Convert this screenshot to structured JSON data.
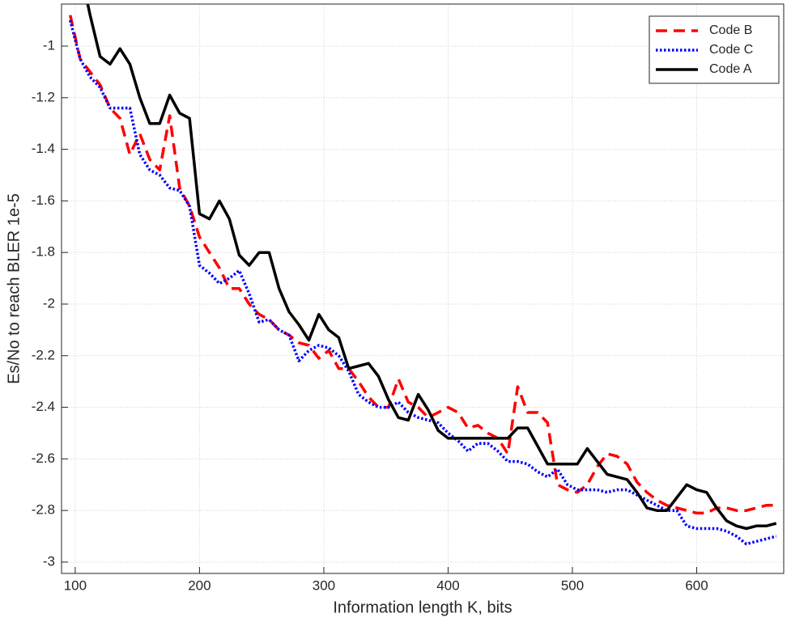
{
  "chart_data": {
    "type": "line",
    "xlabel": "Information length K, bits",
    "ylabel": "Es/No to reach BLER 1e-5",
    "x": [
      96,
      104,
      112,
      120,
      128,
      136,
      144,
      152,
      160,
      168,
      176,
      184,
      192,
      200,
      208,
      216,
      224,
      232,
      240,
      248,
      256,
      264,
      272,
      280,
      288,
      296,
      304,
      312,
      320,
      328,
      336,
      344,
      352,
      360,
      368,
      376,
      384,
      392,
      400,
      408,
      416,
      424,
      432,
      440,
      448,
      456,
      464,
      472,
      480,
      488,
      496,
      504,
      512,
      520,
      528,
      536,
      544,
      552,
      560,
      568,
      576,
      584,
      592,
      600,
      608,
      616,
      624,
      632,
      640,
      648,
      656,
      664
    ],
    "series": [
      {
        "name": "Code B",
        "color": "#ff0000",
        "style": "dashed",
        "values": [
          -0.88,
          -1.05,
          -1.1,
          -1.15,
          -1.24,
          -1.28,
          -1.42,
          -1.34,
          -1.44,
          -1.48,
          -1.27,
          -1.55,
          -1.62,
          -1.74,
          -1.8,
          -1.86,
          -1.94,
          -1.94,
          -2.0,
          -2.04,
          -2.06,
          -2.1,
          -2.12,
          -2.15,
          -2.16,
          -2.21,
          -2.18,
          -2.25,
          -2.25,
          -2.3,
          -2.36,
          -2.4,
          -2.4,
          -2.29,
          -2.38,
          -2.4,
          -2.44,
          -2.42,
          -2.4,
          -2.42,
          -2.48,
          -2.47,
          -2.5,
          -2.52,
          -2.58,
          -2.32,
          -2.42,
          -2.42,
          -2.46,
          -2.7,
          -2.72,
          -2.73,
          -2.7,
          -2.63,
          -2.58,
          -2.59,
          -2.62,
          -2.69,
          -2.73,
          -2.76,
          -2.78,
          -2.79,
          -2.8,
          -2.81,
          -2.81,
          -2.79,
          -2.79,
          -2.8,
          -2.8,
          -2.79,
          -2.78,
          -2.78
        ]
      },
      {
        "name": "Code C",
        "color": "#0000ff",
        "style": "dotted",
        "values": [
          -0.9,
          -1.05,
          -1.12,
          -1.16,
          -1.24,
          -1.24,
          -1.24,
          -1.42,
          -1.48,
          -1.5,
          -1.55,
          -1.56,
          -1.62,
          -1.85,
          -1.88,
          -1.92,
          -1.9,
          -1.87,
          -1.96,
          -2.07,
          -2.06,
          -2.1,
          -2.12,
          -2.22,
          -2.18,
          -2.16,
          -2.17,
          -2.2,
          -2.26,
          -2.35,
          -2.38,
          -2.4,
          -2.4,
          -2.38,
          -2.42,
          -2.44,
          -2.45,
          -2.46,
          -2.5,
          -2.53,
          -2.57,
          -2.54,
          -2.54,
          -2.57,
          -2.61,
          -2.61,
          -2.62,
          -2.65,
          -2.67,
          -2.64,
          -2.7,
          -2.72,
          -2.72,
          -2.72,
          -2.73,
          -2.72,
          -2.72,
          -2.74,
          -2.76,
          -2.78,
          -2.8,
          -2.8,
          -2.86,
          -2.87,
          -2.87,
          -2.87,
          -2.88,
          -2.9,
          -2.93,
          -2.92,
          -2.91,
          -2.9
        ]
      },
      {
        "name": "Code A",
        "color": "#000000",
        "style": "solid",
        "values": [
          null,
          -0.7,
          -0.88,
          -1.04,
          -1.07,
          -1.01,
          -1.07,
          -1.2,
          -1.3,
          -1.3,
          -1.19,
          -1.26,
          -1.28,
          -1.65,
          -1.67,
          -1.6,
          -1.67,
          -1.81,
          -1.85,
          -1.8,
          -1.8,
          -1.94,
          -2.03,
          -2.08,
          -2.14,
          -2.04,
          -2.1,
          -2.13,
          -2.25,
          -2.24,
          -2.23,
          -2.28,
          -2.37,
          -2.44,
          -2.45,
          -2.35,
          -2.41,
          -2.49,
          -2.52,
          -2.52,
          -2.52,
          -2.52,
          -2.52,
          -2.52,
          -2.52,
          -2.48,
          -2.48,
          -2.55,
          -2.62,
          -2.62,
          -2.62,
          -2.62,
          -2.56,
          -2.61,
          -2.66,
          -2.67,
          -2.68,
          -2.73,
          -2.79,
          -2.8,
          -2.8,
          -2.75,
          -2.7,
          -2.72,
          -2.73,
          -2.79,
          -2.84,
          -2.86,
          -2.87,
          -2.86,
          -2.86,
          -2.85
        ]
      }
    ],
    "xlim": [
      89,
      670
    ],
    "ylim": [
      -3.044,
      -0.837
    ],
    "xticks": [
      100,
      200,
      300,
      400,
      500,
      600
    ],
    "yticks": [
      -3,
      -2.8,
      -2.6,
      -2.4,
      -2.2,
      -2,
      -1.8,
      -1.6,
      -1.4,
      -1.2,
      -1
    ],
    "grid": true,
    "legend": "upper right"
  }
}
